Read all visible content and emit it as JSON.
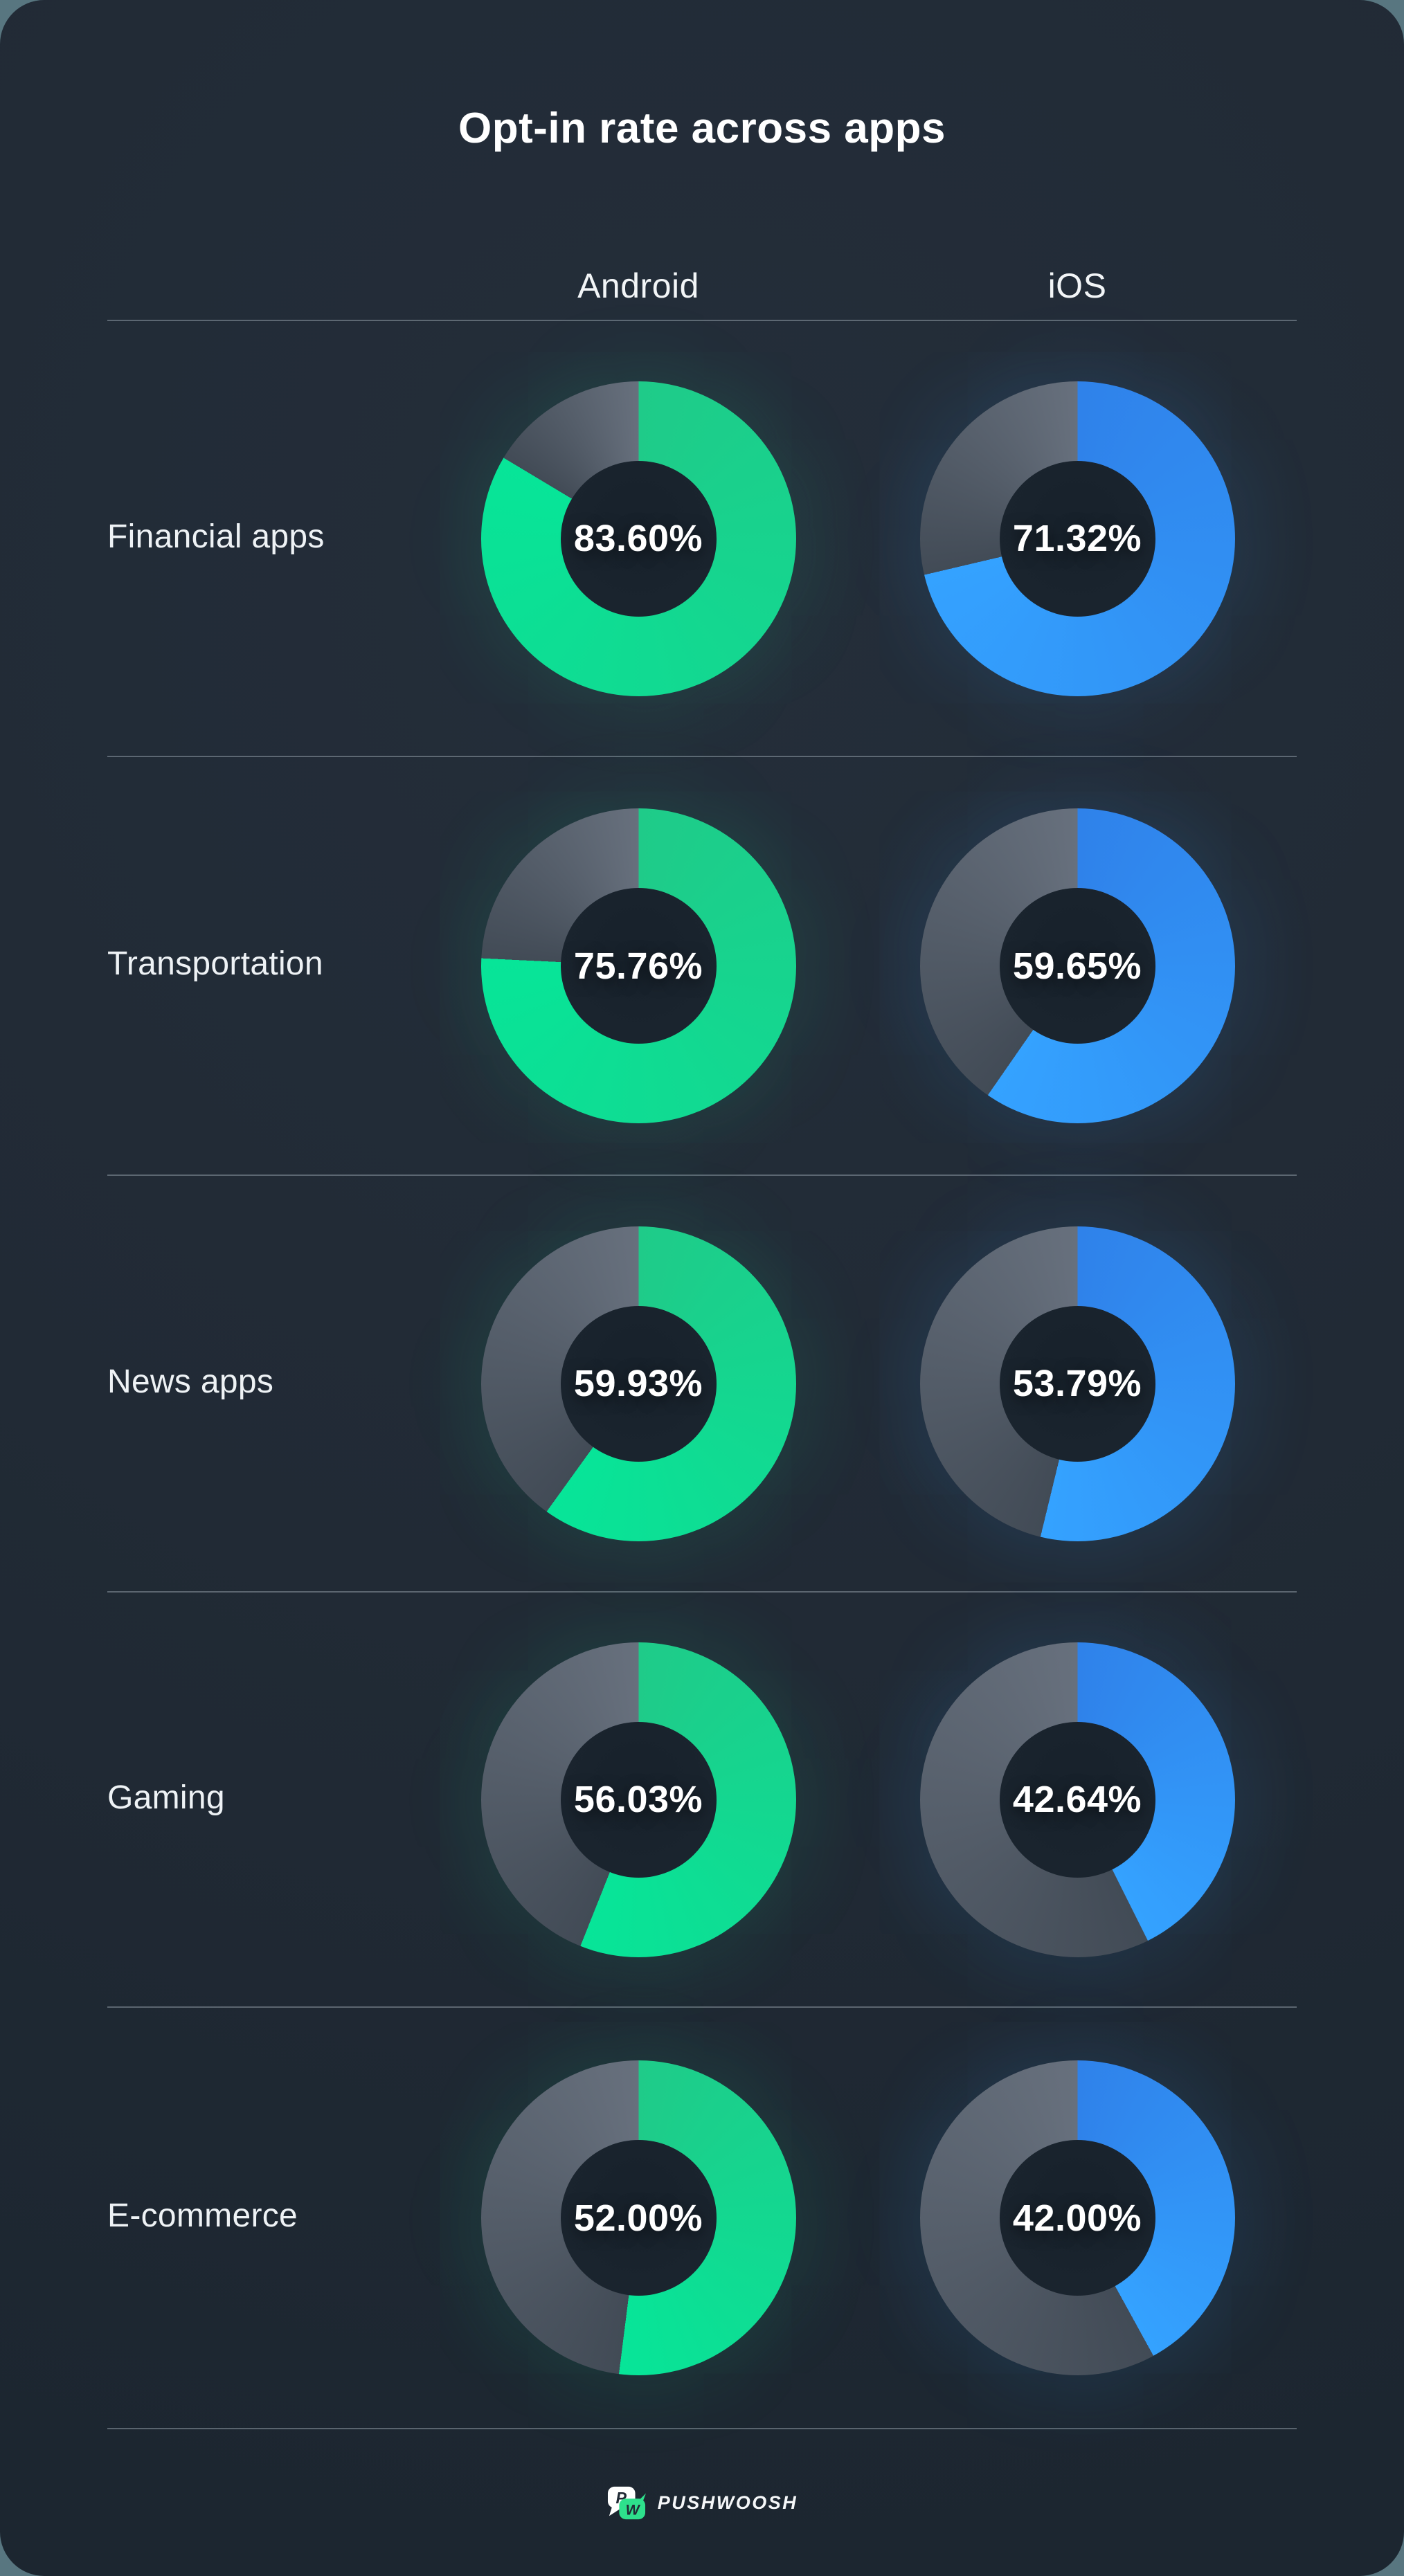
{
  "title": "Opt-in rate across apps",
  "columns": [
    {
      "label": "Android"
    },
    {
      "label": "iOS"
    }
  ],
  "footer": {
    "brand": "PUSHWOOSH"
  },
  "chart_data": {
    "type": "pie",
    "subtype": "donut-grid",
    "title": "Opt-in rate across apps",
    "legend_position": "top",
    "value_suffix": "%",
    "value_decimals": 2,
    "categories": [
      "Financial apps",
      "Transportation",
      "News apps",
      "Gaming",
      "E-commerce"
    ],
    "series": [
      {
        "name": "Android",
        "values": [
          83.6,
          75.76,
          59.93,
          56.03,
          52.0
        ],
        "display_values": [
          "83.60%",
          "75.76%",
          "59.93%",
          "56.03%",
          "52.00%"
        ],
        "color_start": "#1fcb89",
        "color_end": "#07e598",
        "glow": "rgba(20,224,155,0.13)"
      },
      {
        "name": "iOS",
        "values": [
          71.32,
          59.65,
          53.79,
          42.64,
          42.0
        ],
        "display_values": [
          "71.32%",
          "59.65%",
          "53.79%",
          "42.64%",
          "42.00%"
        ],
        "color_start": "#2f82ea",
        "color_end": "#34a2ff",
        "glow": "rgba(58,160,252,0.14)"
      }
    ],
    "remainder_color_start": "#424b56",
    "remainder_color_end": "#67707d"
  },
  "colors": {
    "page_bg": "#587680",
    "card_bg": "#212a35",
    "text": "#f4f6f8",
    "separator": "#7b8590",
    "logo_green": "#2ee08c",
    "logo_letter": "#212a35",
    "donut_hole": "#1a242e"
  }
}
